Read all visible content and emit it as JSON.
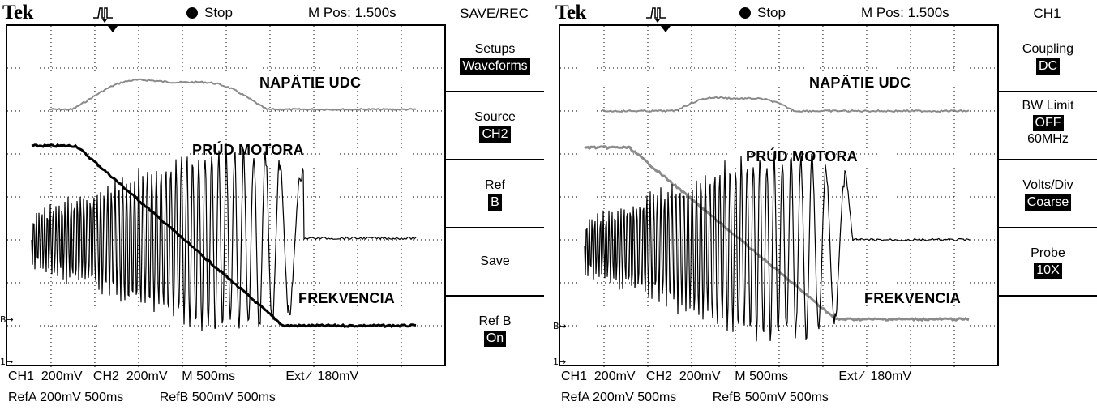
{
  "left": {
    "brand": "Tek",
    "run_state": "Stop",
    "mpos": "M Pos: 1.500s",
    "menu_title": "SAVE/REC",
    "menu": [
      {
        "label": "Setups",
        "value": "Waveforms"
      },
      {
        "label": "Source",
        "value": "CH2"
      },
      {
        "label": "Ref",
        "value": "B"
      },
      {
        "label": "Save",
        "value": ""
      },
      {
        "label": "Ref B",
        "value": "On"
      }
    ],
    "overlay": {
      "udc": "NAPÄTIE UDC",
      "prud": "PRÚD MOTORA",
      "frek": "FREKVENCIA"
    },
    "status_line1": "CH1  200mV   CH2  200mV    M 500ms              Ext ⁄  180mV",
    "status_line2": "RefA 200mV 500ms          RefB 500mV 500ms",
    "marker_b": "B→",
    "marker_1": "1→"
  },
  "right": {
    "brand": "Tek",
    "run_state": "Stop",
    "mpos": "M Pos: 1.500s",
    "menu_title": "CH1",
    "menu": [
      {
        "label": "Coupling",
        "value": "DC",
        "extra": ""
      },
      {
        "label": "BW Limit",
        "value": "OFF",
        "extra": "60MHz"
      },
      {
        "label": "Volts/Div",
        "value": "Coarse",
        "extra": ""
      },
      {
        "label": "Probe",
        "value": "10X",
        "extra": ""
      }
    ],
    "overlay": {
      "udc": "NAPÄTIE UDC",
      "prud": "PRÚD MOTORA",
      "frek": "FREKVENCIA"
    },
    "status_line1": "CH1  200mV   CH2  200mV    M 500ms              Ext ⁄  180mV",
    "status_line2": "RefA 200mV 500ms          RefB 500mV 500ms",
    "marker_b": "B→",
    "marker_1": "1→"
  },
  "colors": {
    "trace": "#000000",
    "ref_trace": "#8a8a8a",
    "grid": "#000000"
  }
}
